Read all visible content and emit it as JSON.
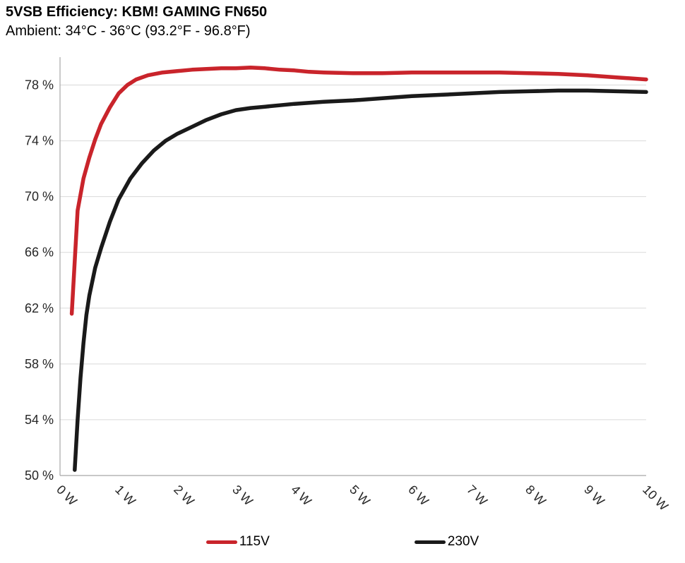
{
  "chart_data": {
    "type": "line",
    "title": "5VSB Efficiency: KBM! GAMING FN650",
    "subtitle": "Ambient: 34°C - 36°C (93.2°F - 96.8°F)",
    "xlabel": "",
    "ylabel": "",
    "x_unit": "W",
    "y_unit": "%",
    "xlim": [
      0,
      10
    ],
    "ylim": [
      50,
      80
    ],
    "grid": "horizontal",
    "legend_position": "bottom",
    "xtick_values": [
      0,
      1,
      2,
      3,
      4,
      5,
      6,
      7,
      8,
      9,
      10
    ],
    "xtick_labels": [
      "0 W",
      "1 W",
      "2 W",
      "3 W",
      "4 W",
      "5 W",
      "6 W",
      "7 W",
      "8 W",
      "9 W",
      "10 W"
    ],
    "ytick_values": [
      50,
      54,
      58,
      62,
      66,
      70,
      74,
      78
    ],
    "ytick_labels": [
      "50 %",
      "54 %",
      "58 %",
      "62 %",
      "66 %",
      "70 %",
      "74 %",
      "78 %"
    ],
    "colors": {
      "grid": "#d9d9d9",
      "axis": "#a6a6a6",
      "text": "#262626"
    },
    "series": [
      {
        "name": "115V",
        "color": "#c9242b",
        "points": [
          [
            0.2,
            61.6
          ],
          [
            0.3,
            69.0
          ],
          [
            0.4,
            71.3
          ],
          [
            0.5,
            72.8
          ],
          [
            0.6,
            74.1
          ],
          [
            0.7,
            75.2
          ],
          [
            0.85,
            76.4
          ],
          [
            1.0,
            77.4
          ],
          [
            1.15,
            78.0
          ],
          [
            1.3,
            78.4
          ],
          [
            1.5,
            78.7
          ],
          [
            1.75,
            78.9
          ],
          [
            2.0,
            79.0
          ],
          [
            2.25,
            79.1
          ],
          [
            2.5,
            79.15
          ],
          [
            2.75,
            79.2
          ],
          [
            3.0,
            79.2
          ],
          [
            3.25,
            79.25
          ],
          [
            3.5,
            79.2
          ],
          [
            3.75,
            79.1
          ],
          [
            4.0,
            79.05
          ],
          [
            4.25,
            78.95
          ],
          [
            4.5,
            78.9
          ],
          [
            5.0,
            78.85
          ],
          [
            5.5,
            78.85
          ],
          [
            6.0,
            78.9
          ],
          [
            6.5,
            78.9
          ],
          [
            7.0,
            78.9
          ],
          [
            7.5,
            78.9
          ],
          [
            8.0,
            78.85
          ],
          [
            8.5,
            78.8
          ],
          [
            9.0,
            78.7
          ],
          [
            9.5,
            78.55
          ],
          [
            10.0,
            78.4
          ]
        ]
      },
      {
        "name": "230V",
        "color": "#1a1a1a",
        "points": [
          [
            0.25,
            50.4
          ],
          [
            0.3,
            54.0
          ],
          [
            0.35,
            57.0
          ],
          [
            0.4,
            59.5
          ],
          [
            0.45,
            61.5
          ],
          [
            0.5,
            62.9
          ],
          [
            0.6,
            64.9
          ],
          [
            0.7,
            66.3
          ],
          [
            0.85,
            68.2
          ],
          [
            1.0,
            69.8
          ],
          [
            1.2,
            71.3
          ],
          [
            1.4,
            72.4
          ],
          [
            1.6,
            73.3
          ],
          [
            1.8,
            74.0
          ],
          [
            2.0,
            74.5
          ],
          [
            2.25,
            75.0
          ],
          [
            2.5,
            75.5
          ],
          [
            2.75,
            75.9
          ],
          [
            3.0,
            76.2
          ],
          [
            3.25,
            76.35
          ],
          [
            3.5,
            76.45
          ],
          [
            3.75,
            76.55
          ],
          [
            4.0,
            76.65
          ],
          [
            4.5,
            76.8
          ],
          [
            5.0,
            76.9
          ],
          [
            5.5,
            77.05
          ],
          [
            6.0,
            77.2
          ],
          [
            6.5,
            77.3
          ],
          [
            7.0,
            77.4
          ],
          [
            7.5,
            77.5
          ],
          [
            8.0,
            77.55
          ],
          [
            8.5,
            77.6
          ],
          [
            9.0,
            77.6
          ],
          [
            9.5,
            77.55
          ],
          [
            10.0,
            77.5
          ]
        ]
      }
    ]
  }
}
